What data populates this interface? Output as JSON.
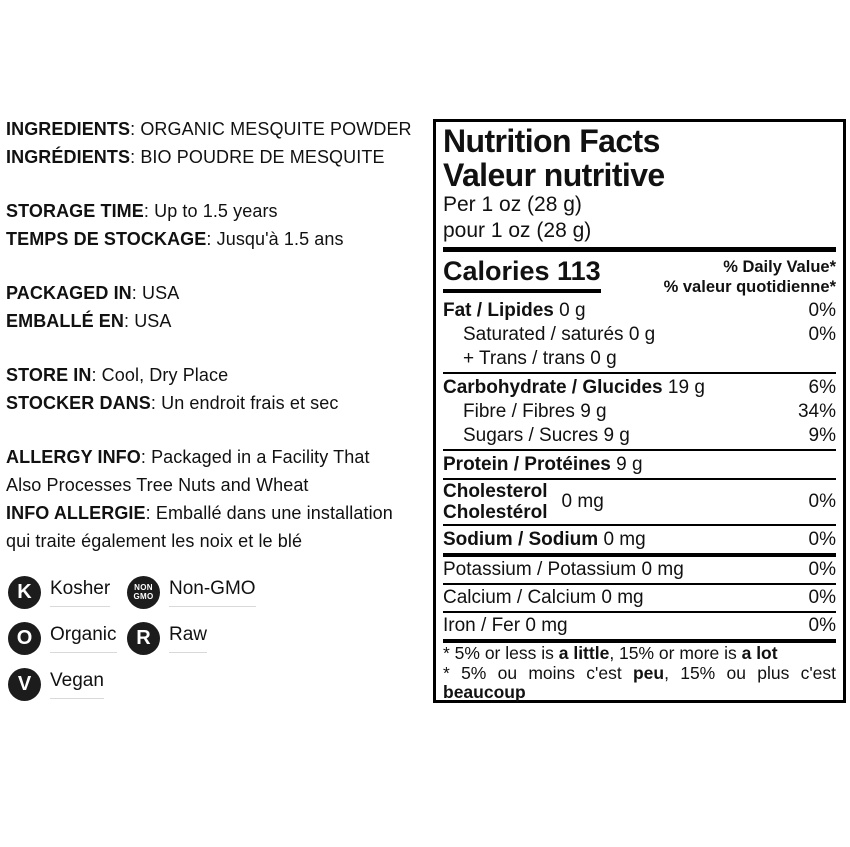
{
  "meta": {
    "background": "#ffffff",
    "text_color": "#111111",
    "badge_color": "#1c1c1c",
    "underline_color": "#d9d9d9"
  },
  "left": {
    "sections": [
      {
        "lines": [
          {
            "b": "INGREDIENTS",
            "r": ": ORGANIC MESQUITE POWDER"
          },
          {
            "b": "INGRÉDIENTS",
            "r": ": BIO POUDRE DE MESQUITE"
          }
        ]
      },
      {
        "lines": [
          {
            "b": "STORAGE TIME",
            "r": ": Up to 1.5 years"
          },
          {
            "b": "TEMPS DE STOCKAGE",
            "r": ": Jusqu'à 1.5 ans"
          }
        ]
      },
      {
        "lines": [
          {
            "b": "PACKAGED IN",
            "r": ": USA"
          },
          {
            "b": "EMBALLÉ EN",
            "r": ": USA"
          }
        ]
      },
      {
        "lines": [
          {
            "b": "STORE IN",
            "r": ": Cool, Dry Place"
          },
          {
            "b": "STOCKER DANS",
            "r": ": Un endroit frais et sec"
          }
        ]
      },
      {
        "lines": [
          {
            "b": "ALLERGY INFO",
            "r": ": Packaged in a Facility That"
          },
          {
            "b": "",
            "r": "Also Processes Tree Nuts and Wheat"
          },
          {
            "b": "INFO ALLERGIE",
            "r": ": Emballé dans une installation"
          },
          {
            "b": "",
            "r": "qui traite également les noix et le blé"
          }
        ]
      }
    ]
  },
  "badges": [
    {
      "icon": "K",
      "label": "Kosher"
    },
    {
      "icon_line1": "NON",
      "icon_line2": "GMO",
      "label": "Non-GMO"
    },
    {
      "icon": "O",
      "label": "Organic"
    },
    {
      "icon": "R",
      "label": "Raw"
    },
    {
      "icon": "V",
      "label": "Vegan"
    }
  ],
  "panel": {
    "title_en": "Nutrition Facts",
    "title_fr": "Valeur nutritive",
    "serving_en": "Per 1 oz (28 g)",
    "serving_fr": "pour 1 oz (28 g)",
    "calories": "Calories 113",
    "daily_value_en": "% Daily Value*",
    "daily_value_fr": "% valeur quotidienne*",
    "rows": {
      "fat": {
        "bold": "Fat / Lipides",
        "rest": " 0 g",
        "pct": "0%"
      },
      "saturated": {
        "bold": "",
        "rest": "Saturated / saturés 0 g",
        "pct": "0%"
      },
      "trans": {
        "bold": "",
        "rest": "+ Trans / trans 0 g",
        "pct": ""
      },
      "carb": {
        "bold": "Carbohydrate / Glucides",
        "rest": " 19 g",
        "pct": "6%"
      },
      "fibre": {
        "bold": "",
        "rest": "Fibre / Fibres 9 g",
        "pct": "34%"
      },
      "sugars": {
        "bold": "",
        "rest": "Sugars / Sucres 9 g",
        "pct": "9%"
      },
      "protein": {
        "bold": "Protein / Protéines",
        "rest": " 9 g",
        "pct": ""
      },
      "cholesterol": {
        "bold_en": "Cholesterol",
        "bold_fr": "Cholestérol",
        "value": "0 mg",
        "pct": "0%"
      },
      "sodium": {
        "bold": "Sodium / Sodium",
        "rest": " 0 mg",
        "pct": "0%"
      },
      "potassium": {
        "bold": "",
        "rest": "Potassium / Potassium 0 mg",
        "pct": "0%"
      },
      "calcium": {
        "bold": "",
        "rest": "Calcium / Calcium 0 mg",
        "pct": "0%"
      },
      "iron": {
        "bold": "",
        "rest": "Iron / Fer 0 mg",
        "pct": "0%"
      }
    },
    "footnote": {
      "en_1": "* 5% or less is ",
      "en_2": "a little",
      "en_3": ", 15% or more is ",
      "en_4": "a lot",
      "fr_1": "* 5% ou moins c'est ",
      "fr_2": "peu",
      "fr_3": ", 15% ou plus c'est ",
      "fr_4": "beaucoup"
    }
  }
}
